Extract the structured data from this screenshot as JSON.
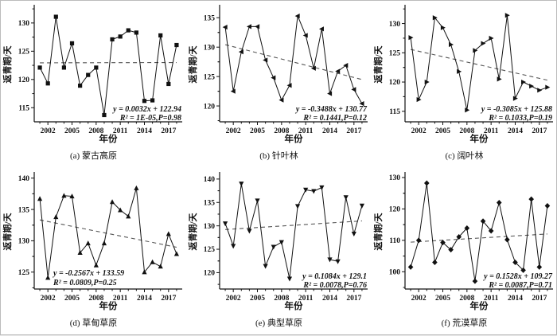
{
  "figure": {
    "background": "#ffffff",
    "line_color": "#111111",
    "trend_color": "#555555",
    "x_axis_title": "年份",
    "y_axis_title": "返青期/天"
  },
  "chart_data": [
    {
      "type": "line",
      "caption": "(a) 蒙古高原",
      "xlabel": "年份",
      "ylabel": "返青期/天",
      "marker": "square",
      "x": [
        2001,
        2002,
        2003,
        2004,
        2005,
        2006,
        2007,
        2008,
        2009,
        2010,
        2011,
        2012,
        2013,
        2014,
        2015,
        2016,
        2017,
        2018
      ],
      "values": [
        122.1,
        119.3,
        131.1,
        122.1,
        126.4,
        118.9,
        120.8,
        122.1,
        113.7,
        127.1,
        127.6,
        128.7,
        128.3,
        116.2,
        116.3,
        127.8,
        119.2,
        126.1
      ],
      "xticks": [
        2002,
        2005,
        2008,
        2011,
        2014,
        2017
      ],
      "yticks": [
        115,
        120,
        125,
        130
      ],
      "ylim": [
        112.5,
        132.8
      ],
      "xlim": [
        2000.3,
        2018.7
      ],
      "trend": {
        "slope": 0.0032,
        "intercept": 122.94,
        "equation": "y = 0.0032x + 122.94",
        "stats": "R² = 1E-05,P=0.98"
      },
      "eq_align": "right"
    },
    {
      "type": "line",
      "caption": "(b) 针叶林",
      "xlabel": "年份",
      "ylabel": "返青期/天",
      "marker": "triangle-left",
      "x": [
        2001,
        2002,
        2003,
        2004,
        2005,
        2006,
        2007,
        2008,
        2009,
        2010,
        2011,
        2012,
        2013,
        2014,
        2015,
        2016,
        2017,
        2018
      ],
      "values": [
        133.4,
        122.5,
        129.2,
        133.5,
        133.5,
        127.8,
        124.8,
        121.0,
        123.5,
        135.3,
        132.0,
        126.4,
        133.1,
        122.1,
        125.9,
        126.9,
        122.8,
        120.4
      ],
      "xticks": [
        2002,
        2005,
        2008,
        2011,
        2014,
        2017
      ],
      "yticks": [
        120,
        125,
        130,
        135
      ],
      "ylim": [
        117.3,
        136.8
      ],
      "xlim": [
        2000.3,
        2018.7
      ],
      "trend": {
        "slope": -0.3488,
        "intercept": 130.77,
        "equation": "y = -0.3488x + 130.77",
        "stats": "R² = 0.1441,P=0.12"
      },
      "eq_align": "right"
    },
    {
      "type": "line",
      "caption": "(c) 阔叶林",
      "xlabel": "年份",
      "ylabel": "返青期/天",
      "marker": "triangle-right",
      "x": [
        2001,
        2002,
        2003,
        2004,
        2005,
        2006,
        2007,
        2008,
        2009,
        2010,
        2011,
        2012,
        2013,
        2014,
        2015,
        2016,
        2017,
        2018
      ],
      "values": [
        127.6,
        117.0,
        120.0,
        131.0,
        129.3,
        126.4,
        121.8,
        115.2,
        125.4,
        126.6,
        127.5,
        120.5,
        131.4,
        117.2,
        120.0,
        119.3,
        118.6,
        119.1
      ],
      "xticks": [
        2002,
        2005,
        2008,
        2011,
        2014,
        2017
      ],
      "yticks": [
        115,
        120,
        125,
        130
      ],
      "ylim": [
        113.2,
        132.8
      ],
      "xlim": [
        2000.3,
        2018.7
      ],
      "trend": {
        "slope": -0.3085,
        "intercept": 125.88,
        "equation": "y = -0.3085x + 125.88",
        "stats": "R² = 0.1033,P=0.19"
      },
      "eq_align": "right"
    },
    {
      "type": "line",
      "caption": "(d) 草甸草原",
      "xlabel": "年份",
      "ylabel": "返青期/天",
      "marker": "triangle-up",
      "x": [
        2001,
        2002,
        2003,
        2004,
        2005,
        2006,
        2007,
        2008,
        2009,
        2010,
        2011,
        2012,
        2013,
        2014,
        2015,
        2016,
        2017,
        2018
      ],
      "values": [
        136.7,
        124.1,
        133.8,
        137.2,
        137.1,
        128.1,
        129.6,
        126.1,
        129.6,
        136.2,
        134.9,
        133.9,
        138.4,
        125.0,
        126.6,
        125.9,
        131.1,
        127.9
      ],
      "xticks": [
        2002,
        2005,
        2008,
        2011,
        2014,
        2017
      ],
      "yticks": [
        125,
        130,
        135,
        140
      ],
      "ylim": [
        122.3,
        140.6
      ],
      "xlim": [
        2000.3,
        2018.7
      ],
      "trend": {
        "slope": -0.2567,
        "intercept": 133.59,
        "equation": "y = -0.2567x + 133.59",
        "stats": "R² = 0.0809,P=0.25"
      },
      "eq_align": "left-center"
    },
    {
      "type": "line",
      "caption": "(e) 典型草原",
      "xlabel": "年份",
      "ylabel": "返青期/天",
      "marker": "triangle-down",
      "x": [
        2001,
        2002,
        2003,
        2004,
        2005,
        2006,
        2007,
        2008,
        2009,
        2010,
        2011,
        2012,
        2013,
        2014,
        2015,
        2016,
        2017,
        2018
      ],
      "values": [
        130.5,
        125.7,
        139.0,
        128.9,
        135.4,
        121.4,
        125.5,
        126.5,
        118.7,
        134.2,
        137.7,
        137.4,
        138.2,
        122.8,
        122.4,
        136.1,
        128.3,
        134.3
      ],
      "xticks": [
        2002,
        2005,
        2008,
        2011,
        2014,
        2017
      ],
      "yticks": [
        120,
        125,
        130,
        135,
        140
      ],
      "ylim": [
        116.5,
        141.0
      ],
      "xlim": [
        2000.3,
        2018.7
      ],
      "trend": {
        "slope": 0.1084,
        "intercept": 129.1,
        "equation": "y = 0.1084x + 129.1",
        "stats": "R² = 0.0078,P=0.76"
      },
      "eq_align": "right"
    },
    {
      "type": "line",
      "caption": "(f) 荒漠草原",
      "xlabel": "年份",
      "ylabel": "返青期/天",
      "marker": "diamond",
      "x": [
        2001,
        2002,
        2003,
        2004,
        2005,
        2006,
        2007,
        2008,
        2009,
        2010,
        2011,
        2012,
        2013,
        2014,
        2015,
        2016,
        2017,
        2018
      ],
      "values": [
        101.5,
        110.0,
        128.2,
        103.0,
        109.3,
        107.0,
        111.1,
        113.9,
        97.0,
        116.1,
        113.0,
        122.0,
        110.2,
        103.0,
        100.5,
        123.1,
        101.5,
        121.0
      ],
      "xticks": [
        2002,
        2005,
        2008,
        2011,
        2014,
        2017
      ],
      "yticks": [
        100,
        110,
        120,
        130
      ],
      "ylim": [
        94.5,
        131.0
      ],
      "xlim": [
        2000.3,
        2018.7
      ],
      "trend": {
        "slope": 0.1528,
        "intercept": 109.27,
        "equation": "y = 0.1528x + 109.27",
        "stats": "R² = 0.0087,P=0.71"
      },
      "eq_align": "right"
    }
  ]
}
